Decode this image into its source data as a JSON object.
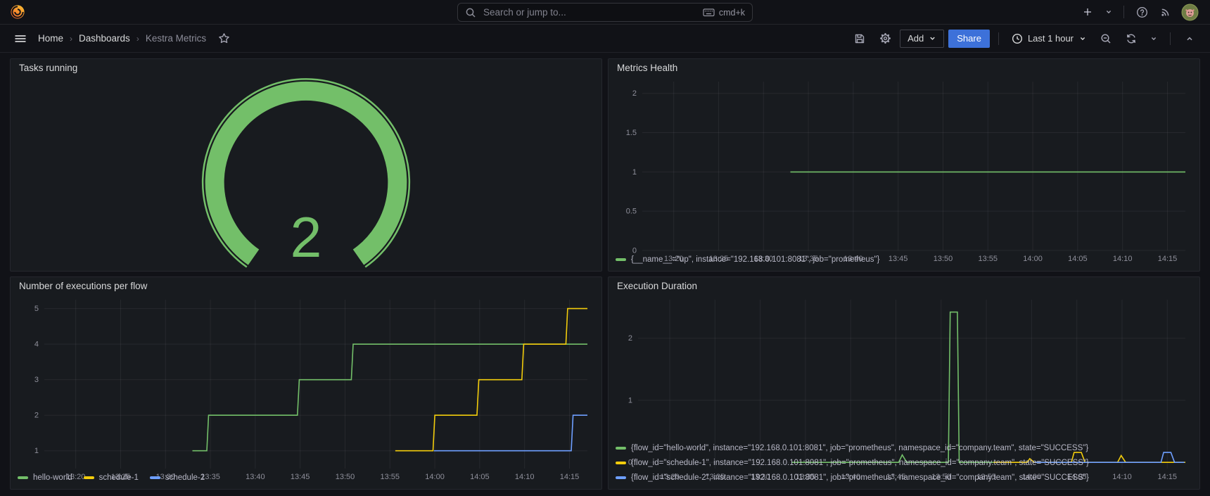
{
  "topnav": {
    "search": {
      "placeholder": "Search or jump to...",
      "shortcut": "cmd+k"
    }
  },
  "breadcrumb": {
    "home": "Home",
    "dashboards": "Dashboards",
    "current": "Kestra Metrics"
  },
  "toolbar": {
    "add_label": "Add",
    "share_label": "Share",
    "time_range": "Last 1 hour"
  },
  "colors": {
    "green": "#73BF69",
    "yellow": "#F2CC0C",
    "blue": "#6E9FFF",
    "primary_button": "#3D71D9",
    "panel_bg": "#181b1f",
    "page_bg": "#111217"
  },
  "panels": {
    "tasks_running": {
      "title": "Tasks running",
      "value": "2"
    },
    "metrics_health": {
      "title": "Metrics Health"
    },
    "executions": {
      "title": "Number of executions per flow"
    },
    "duration": {
      "title": "Execution Duration"
    }
  },
  "chart_data": [
    {
      "type": "gauge",
      "panel": "tasks_running",
      "title": "Tasks running",
      "value": "2",
      "color": "#73BF69"
    },
    {
      "type": "line",
      "panel": "metrics_health",
      "title": "Metrics Health",
      "x_range": [
        16.5,
        77
      ],
      "y_range": [
        0,
        2.15
      ],
      "pad_left": 40,
      "x_ticks": [
        {
          "m": 20,
          "label": "13:20"
        },
        {
          "m": 25,
          "label": "13:25"
        },
        {
          "m": 30,
          "label": "13:30"
        },
        {
          "m": 35,
          "label": "13:35"
        },
        {
          "m": 40,
          "label": "13:40"
        },
        {
          "m": 45,
          "label": "13:45"
        },
        {
          "m": 50,
          "label": "13:50"
        },
        {
          "m": 55,
          "label": "13:55"
        },
        {
          "m": 60,
          "label": "14:00"
        },
        {
          "m": 65,
          "label": "14:05"
        },
        {
          "m": 70,
          "label": "14:10"
        },
        {
          "m": 75,
          "label": "14:15"
        }
      ],
      "y_ticks": [
        {
          "v": 0,
          "label": "0"
        },
        {
          "v": 0.5,
          "label": "0.5"
        },
        {
          "v": 1,
          "label": "1"
        },
        {
          "v": 1.5,
          "label": "1.5"
        },
        {
          "v": 2,
          "label": "2"
        }
      ],
      "series": [
        {
          "name": "{__name__=\"up\", instance=\"192.168.0.101:8081\", job=\"prometheus\"}",
          "color": "#73BF69",
          "points": [
            [
              33,
              1
            ],
            [
              77,
              1
            ]
          ]
        }
      ]
    },
    {
      "type": "line",
      "panel": "executions",
      "title": "Number of executions per flow",
      "x_range": [
        16.5,
        77
      ],
      "y_range": [
        0.5,
        5.25
      ],
      "pad_left": 40,
      "x_ticks": [
        {
          "m": 20,
          "label": "13:20"
        },
        {
          "m": 25,
          "label": "13:25"
        },
        {
          "m": 30,
          "label": "13:30"
        },
        {
          "m": 35,
          "label": "13:35"
        },
        {
          "m": 40,
          "label": "13:40"
        },
        {
          "m": 45,
          "label": "13:45"
        },
        {
          "m": 50,
          "label": "13:50"
        },
        {
          "m": 55,
          "label": "13:55"
        },
        {
          "m": 60,
          "label": "14:00"
        },
        {
          "m": 65,
          "label": "14:05"
        },
        {
          "m": 70,
          "label": "14:10"
        },
        {
          "m": 75,
          "label": "14:15"
        }
      ],
      "y_ticks": [
        {
          "v": 1,
          "label": "1"
        },
        {
          "v": 2,
          "label": "2"
        },
        {
          "v": 3,
          "label": "3"
        },
        {
          "v": 4,
          "label": "4"
        },
        {
          "v": 5,
          "label": "5"
        }
      ],
      "series": [
        {
          "name": "hello-world",
          "color": "#73BF69",
          "points": [
            [
              33,
              1
            ],
            [
              34.6,
              1
            ],
            [
              34.8,
              2
            ],
            [
              44.7,
              2
            ],
            [
              44.9,
              3
            ],
            [
              50.7,
              3
            ],
            [
              50.9,
              4
            ],
            [
              77,
              4
            ]
          ]
        },
        {
          "name": "schedule-1",
          "color": "#F2CC0C",
          "points": [
            [
              55.6,
              1
            ],
            [
              59.8,
              1
            ],
            [
              60,
              2
            ],
            [
              64.7,
              2
            ],
            [
              64.9,
              3
            ],
            [
              69.7,
              3
            ],
            [
              69.9,
              4
            ],
            [
              74.6,
              4
            ],
            [
              74.8,
              5
            ],
            [
              77,
              5
            ]
          ]
        },
        {
          "name": "schedule-2",
          "color": "#6E9FFF",
          "points": [
            [
              59.9,
              1
            ],
            [
              75.2,
              1
            ],
            [
              75.4,
              2
            ],
            [
              77,
              2
            ]
          ]
        }
      ]
    },
    {
      "type": "line",
      "panel": "duration",
      "title": "Execution Duration",
      "x_range": [
        16.5,
        77
      ],
      "y_range": [
        -0.1,
        2.62
      ],
      "pad_left": 34,
      "x_ticks": [
        {
          "m": 20,
          "label": "13:20"
        },
        {
          "m": 25,
          "label": "13:25"
        },
        {
          "m": 30,
          "label": "13:30"
        },
        {
          "m": 35,
          "label": "13:35"
        },
        {
          "m": 40,
          "label": "13:40"
        },
        {
          "m": 45,
          "label": "13:45"
        },
        {
          "m": 50,
          "label": "13:50"
        },
        {
          "m": 55,
          "label": "13:55"
        },
        {
          "m": 60,
          "label": "14:00"
        },
        {
          "m": 65,
          "label": "14:05"
        },
        {
          "m": 70,
          "label": "14:10"
        },
        {
          "m": 75,
          "label": "14:15"
        }
      ],
      "y_ticks": [
        {
          "v": 0,
          "label": "0"
        },
        {
          "v": 1,
          "label": "1"
        },
        {
          "v": 2,
          "label": "2"
        }
      ],
      "series": [
        {
          "name": "{flow_id=\"hello-world\", instance=\"192.168.0.101:8081\", job=\"prometheus\", namespace_id=\"company.team\", state=\"SUCCESS\"}",
          "color": "#73BF69",
          "points": [
            [
              33.5,
              0
            ],
            [
              45.3,
              0
            ],
            [
              45.7,
              0.12
            ],
            [
              46.2,
              0
            ],
            [
              50.8,
              0
            ],
            [
              51,
              2.42
            ],
            [
              51.8,
              2.42
            ],
            [
              52,
              0
            ],
            [
              56.2,
              0
            ]
          ]
        },
        {
          "name": "{flow_id=\"schedule-1\", instance=\"192.168.0.101:8081\", job=\"prometheus\", namespace_id=\"company.team\", state=\"SUCCESS\"}",
          "color": "#F2CC0C",
          "points": [
            [
              55.8,
              0
            ],
            [
              59.5,
              0
            ],
            [
              59.8,
              0.06
            ],
            [
              60.3,
              0
            ],
            [
              64.4,
              0
            ],
            [
              64.7,
              0.16
            ],
            [
              65.5,
              0.16
            ],
            [
              65.9,
              0
            ],
            [
              69.5,
              0
            ],
            [
              69.9,
              0.11
            ],
            [
              70.4,
              0
            ],
            [
              77,
              0
            ]
          ]
        },
        {
          "name": "{flow_id=\"schedule-2\", instance=\"192.168.0.101:8081\", job=\"prometheus\", namespace_id=\"company.team\", state=\"SUCCESS\"}",
          "color": "#6E9FFF",
          "points": [
            [
              60.3,
              0
            ],
            [
              74.3,
              0
            ],
            [
              74.6,
              0.16
            ],
            [
              75.4,
              0.16
            ],
            [
              75.8,
              0
            ],
            [
              76.9,
              0
            ]
          ]
        }
      ]
    }
  ]
}
